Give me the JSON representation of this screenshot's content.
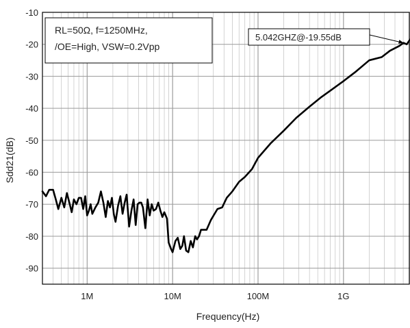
{
  "chart_data": {
    "type": "line",
    "xlabel": "Frequency(Hz)",
    "ylabel": "Sdd21(dB)",
    "xscale": "log",
    "xlim": [
      300000,
      6000000000
    ],
    "ylim": [
      -95,
      -10
    ],
    "grid": true,
    "xticks": [
      {
        "value": 1000000,
        "label": "1M"
      },
      {
        "value": 10000000,
        "label": "10M"
      },
      {
        "value": 100000000,
        "label": "100M"
      },
      {
        "value": 1000000000,
        "label": "1G"
      }
    ],
    "yticks": [
      -10,
      -20,
      -30,
      -40,
      -50,
      -60,
      -70,
      -80,
      -90
    ],
    "conditions": [
      "RL=50Ω, f=1250MHz,",
      "/OE=High, VSW=0.2Vpp"
    ],
    "annotation": {
      "text": "5.042GHZ@-19.55dB",
      "x": 5042000000,
      "y": -19.55
    },
    "series": [
      {
        "color": "#000000",
        "points": [
          [
            300000,
            -66
          ],
          [
            330000,
            -67.5
          ],
          [
            360000,
            -65.5
          ],
          [
            400000,
            -65.5
          ],
          [
            430000,
            -68.5
          ],
          [
            460000,
            -71.5
          ],
          [
            500000,
            -68
          ],
          [
            540000,
            -71
          ],
          [
            580000,
            -66.5
          ],
          [
            620000,
            -69.5
          ],
          [
            660000,
            -72.5
          ],
          [
            700000,
            -68.5
          ],
          [
            750000,
            -70
          ],
          [
            800000,
            -68
          ],
          [
            850000,
            -68
          ],
          [
            900000,
            -71.5
          ],
          [
            950000,
            -67.5
          ],
          [
            1000000,
            -73.5
          ],
          [
            1050000,
            -72
          ],
          [
            1100000,
            -70
          ],
          [
            1150000,
            -73
          ],
          [
            1250000,
            -71
          ],
          [
            1350000,
            -69.5
          ],
          [
            1450000,
            -66
          ],
          [
            1550000,
            -69.5
          ],
          [
            1650000,
            -74
          ],
          [
            1750000,
            -69
          ],
          [
            1850000,
            -71
          ],
          [
            1950000,
            -68
          ],
          [
            2050000,
            -73
          ],
          [
            2150000,
            -75.5
          ],
          [
            2300000,
            -70.5
          ],
          [
            2450000,
            -67.5
          ],
          [
            2600000,
            -73
          ],
          [
            2750000,
            -69.5
          ],
          [
            2900000,
            -67
          ],
          [
            3100000,
            -77
          ],
          [
            3300000,
            -72
          ],
          [
            3500000,
            -68.5
          ],
          [
            3700000,
            -76.5
          ],
          [
            3900000,
            -70
          ],
          [
            4100000,
            -69.5
          ],
          [
            4300000,
            -69.5
          ],
          [
            4500000,
            -71
          ],
          [
            4800000,
            -77.5
          ],
          [
            5100000,
            -68.5
          ],
          [
            5400000,
            -73.5
          ],
          [
            5700000,
            -70
          ],
          [
            6000000,
            -72
          ],
          [
            6400000,
            -71.5
          ],
          [
            6800000,
            -69.5
          ],
          [
            7200000,
            -72
          ],
          [
            7600000,
            -74
          ],
          [
            8000000,
            -72.5
          ],
          [
            8600000,
            -74.5
          ],
          [
            9000000,
            -82
          ],
          [
            9600000,
            -84
          ],
          [
            10000000,
            -85
          ],
          [
            10800000,
            -81.5
          ],
          [
            11500000,
            -80.5
          ],
          [
            12300000,
            -84
          ],
          [
            13000000,
            -83
          ],
          [
            13600000,
            -80
          ],
          [
            14400000,
            -84.5
          ],
          [
            15300000,
            -85
          ],
          [
            16300000,
            -81.5
          ],
          [
            17300000,
            -83.5
          ],
          [
            18400000,
            -80
          ],
          [
            19300000,
            -81
          ],
          [
            20400000,
            -80
          ],
          [
            21500000,
            -78
          ],
          [
            23000000,
            -78
          ],
          [
            25000000,
            -78
          ],
          [
            28000000,
            -75
          ],
          [
            31000000,
            -73
          ],
          [
            33500000,
            -71.5
          ],
          [
            38000000,
            -71
          ],
          [
            43000000,
            -68
          ],
          [
            50000000,
            -66
          ],
          [
            60000000,
            -63
          ],
          [
            70000000,
            -61.5
          ],
          [
            85000000,
            -59
          ],
          [
            100000000,
            -55.5
          ],
          [
            140000000,
            -51
          ],
          [
            200000000,
            -47
          ],
          [
            280000000,
            -43
          ],
          [
            400000000,
            -39.5
          ],
          [
            550000000,
            -36.5
          ],
          [
            700000000,
            -34.5
          ],
          [
            1000000000,
            -31.5
          ],
          [
            1400000000,
            -28.5
          ],
          [
            2000000000,
            -25
          ],
          [
            2800000000,
            -24
          ],
          [
            3500000000,
            -22
          ],
          [
            4500000000,
            -20.5
          ],
          [
            5042000000,
            -19.55
          ],
          [
            5500000000,
            -20
          ],
          [
            6000000000,
            -18.5
          ]
        ]
      }
    ]
  }
}
